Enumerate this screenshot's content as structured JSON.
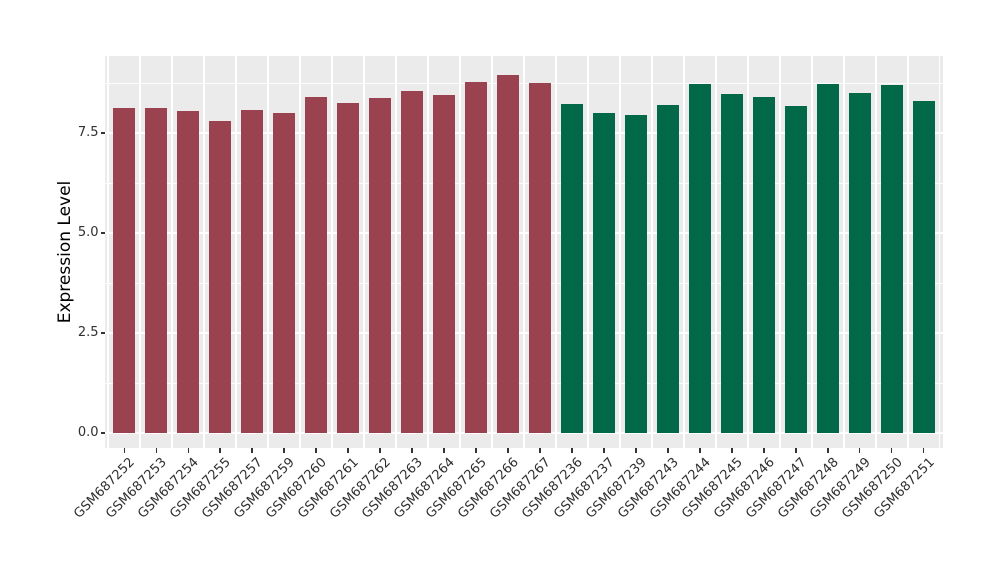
{
  "figure": {
    "background": "#FFFFFF"
  },
  "chart_data": {
    "type": "bar",
    "title": "",
    "xlabel": "",
    "ylabel": "Expression Level",
    "ylim": [
      0,
      9.43
    ],
    "yticks": [
      0,
      2.5,
      5,
      7.5
    ],
    "ytick_labels": [
      "0.0",
      "2.5",
      "5.0",
      "7.5"
    ],
    "grid": "on",
    "legend": "none",
    "panel_background": "#EBEBEB",
    "grid_color": "#FFFFFF",
    "categories": [
      "GSM687252",
      "GSM687253",
      "GSM687254",
      "GSM687255",
      "GSM687257",
      "GSM687259",
      "GSM687260",
      "GSM687261",
      "GSM687262",
      "GSM687263",
      "GSM687264",
      "GSM687265",
      "GSM687266",
      "GSM687267",
      "GSM687236",
      "GSM687237",
      "GSM687239",
      "GSM687243",
      "GSM687244",
      "GSM687245",
      "GSM687246",
      "GSM687247",
      "GSM687248",
      "GSM687249",
      "GSM687250",
      "GSM687251"
    ],
    "series": [
      {
        "color": "#9A424F",
        "categories": [
          "GSM687252",
          "GSM687253",
          "GSM687254",
          "GSM687255",
          "GSM687257",
          "GSM687259",
          "GSM687260",
          "GSM687261",
          "GSM687262",
          "GSM687263",
          "GSM687264",
          "GSM687265",
          "GSM687266",
          "GSM687267"
        ],
        "values": [
          8.12,
          8.12,
          8.06,
          7.8,
          8.07,
          8.01,
          8.41,
          8.26,
          8.38,
          8.55,
          8.44,
          8.78,
          8.96,
          8.74
        ]
      },
      {
        "color": "#016848",
        "categories": [
          "GSM687236",
          "GSM687237",
          "GSM687239",
          "GSM687243",
          "GSM687244",
          "GSM687245",
          "GSM687246",
          "GSM687247",
          "GSM687248",
          "GSM687249",
          "GSM687250",
          "GSM687251"
        ],
        "values": [
          8.23,
          8.0,
          7.94,
          8.2,
          8.73,
          8.48,
          8.4,
          8.17,
          8.72,
          8.49,
          8.69,
          8.31
        ]
      }
    ]
  }
}
